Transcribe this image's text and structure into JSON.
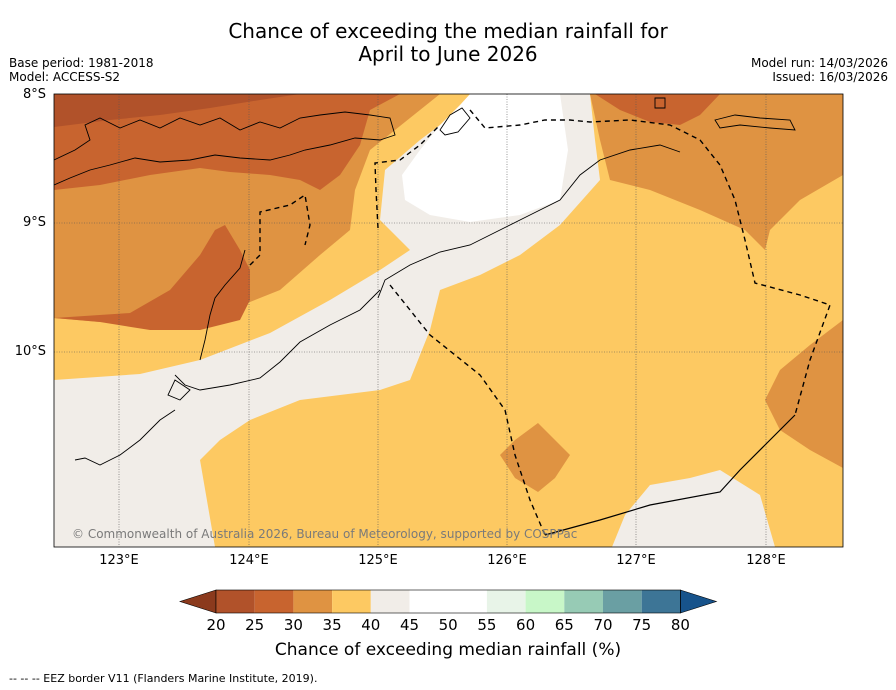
{
  "title": {
    "line1": "Chance of exceeding the median rainfall for",
    "line2": "April to June 2026"
  },
  "meta": {
    "base_period": "Base period: 1981-2018",
    "model": "Model: ACCESS-S2",
    "model_run": "Model run: 14/03/2026",
    "issued": "Issued: 16/03/2026"
  },
  "map": {
    "lat_labels": [
      "8°S",
      "9°S",
      "10°S"
    ],
    "lon_labels": [
      "123°E",
      "124°E",
      "125°E",
      "126°E",
      "127°E",
      "128°E"
    ],
    "copyright": "© Commonwealth of Australia 2026, Bureau of Meteorology, supported by COSPPac"
  },
  "colorbar": {
    "ticks": [
      "20",
      "25",
      "30",
      "35",
      "40",
      "45",
      "50",
      "55",
      "60",
      "65",
      "70",
      "75",
      "80"
    ],
    "colors": [
      "#8b3a1d",
      "#b1522a",
      "#c8642f",
      "#df9342",
      "#fdc962",
      "#f1ede8",
      "#ffffff",
      "#ffffff",
      "#e8f4e8",
      "#c8f7c8",
      "#97cbb5",
      "#6a9fa3",
      "#3d7596",
      "#17538b"
    ],
    "label": "Chance of exceeding median rainfall (%)"
  },
  "footnote": "-- -- -- EEZ border V11 (Flanders Marine Institute, 2019).",
  "palette": {
    "c25": "#b1522a",
    "c30": "#c8642f",
    "c35": "#df9342",
    "c40": "#fdc962",
    "c45": "#f1ede8",
    "c50": "#ffffff"
  }
}
